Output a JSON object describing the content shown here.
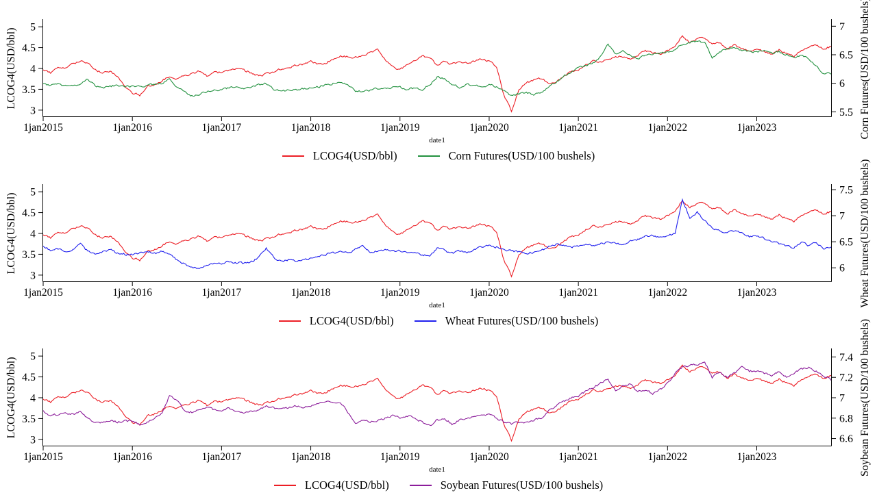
{
  "page": {
    "background": "#ffffff",
    "description": "Three stacked dual-axis Stata-style time-series line charts comparing LCOG4 with grain futures, 2015-2023"
  },
  "series_store": {
    "lcog4": [
      3.98,
      3.9,
      4.05,
      4.02,
      4.12,
      4.18,
      4.12,
      3.98,
      3.88,
      3.93,
      3.8,
      3.58,
      3.42,
      3.36,
      3.55,
      3.62,
      3.72,
      3.8,
      3.76,
      3.82,
      3.86,
      3.94,
      3.82,
      3.92,
      3.9,
      3.96,
      3.98,
      3.95,
      3.9,
      3.82,
      3.86,
      3.92,
      3.98,
      4.02,
      4.08,
      4.1,
      4.16,
      4.1,
      4.14,
      4.22,
      4.3,
      4.28,
      4.27,
      4.31,
      4.38,
      4.44,
      4.22,
      4.04,
      3.96,
      4.12,
      4.2,
      4.3,
      4.26,
      4.08,
      4.18,
      4.1,
      4.17,
      4.12,
      4.18,
      4.22,
      4.18,
      4.02,
      3.35,
      2.98,
      3.48,
      3.66,
      3.72,
      3.76,
      3.66,
      3.68,
      3.8,
      3.92,
      3.97,
      4.08,
      4.18,
      4.15,
      4.22,
      4.3,
      4.28,
      4.22,
      4.32,
      4.44,
      4.38,
      4.33,
      4.42,
      4.52,
      4.8,
      4.62,
      4.7,
      4.74,
      4.58,
      4.62,
      4.47,
      4.56,
      4.48,
      4.4,
      4.46,
      4.4,
      4.34,
      4.44,
      4.36,
      4.3,
      4.42,
      4.5,
      4.57,
      4.47,
      4.53
    ],
    "corn": [
      6.0,
      5.97,
      5.98,
      5.96,
      5.95,
      5.98,
      6.08,
      5.95,
      5.92,
      5.95,
      5.96,
      5.94,
      5.95,
      5.94,
      5.96,
      5.98,
      6.0,
      6.1,
      5.94,
      5.84,
      5.78,
      5.81,
      5.85,
      5.87,
      5.9,
      5.92,
      5.93,
      5.92,
      5.93,
      5.97,
      6.0,
      5.89,
      5.86,
      5.88,
      5.89,
      5.9,
      5.92,
      5.94,
      5.97,
      6.0,
      6.02,
      5.97,
      5.87,
      5.86,
      5.88,
      5.91,
      5.92,
      5.93,
      5.93,
      5.9,
      5.92,
      5.9,
      5.97,
      6.12,
      6.07,
      5.97,
      5.93,
      5.98,
      5.95,
      5.96,
      5.97,
      5.94,
      5.86,
      5.78,
      5.81,
      5.83,
      5.8,
      5.85,
      5.93,
      6.02,
      6.12,
      6.2,
      6.26,
      6.31,
      6.36,
      6.46,
      6.68,
      6.52,
      6.58,
      6.5,
      6.42,
      6.49,
      6.51,
      6.52,
      6.55,
      6.6,
      6.68,
      6.72,
      6.74,
      6.7,
      6.45,
      6.56,
      6.6,
      6.62,
      6.58,
      6.56,
      6.55,
      6.58,
      6.52,
      6.55,
      6.5,
      6.45,
      6.5,
      6.44,
      6.3,
      6.18,
      6.16
    ],
    "wheat": [
      6.42,
      6.34,
      6.36,
      6.3,
      6.34,
      6.45,
      6.32,
      6.28,
      6.32,
      6.35,
      6.28,
      6.26,
      6.25,
      6.28,
      6.3,
      6.27,
      6.32,
      6.28,
      6.15,
      6.08,
      6.02,
      6.0,
      6.05,
      6.08,
      6.08,
      6.12,
      6.1,
      6.08,
      6.12,
      6.2,
      6.38,
      6.2,
      6.12,
      6.15,
      6.13,
      6.15,
      6.18,
      6.23,
      6.26,
      6.28,
      6.3,
      6.28,
      6.35,
      6.43,
      6.3,
      6.33,
      6.35,
      6.32,
      6.33,
      6.3,
      6.28,
      6.25,
      6.22,
      6.38,
      6.33,
      6.28,
      6.32,
      6.3,
      6.35,
      6.4,
      6.42,
      6.4,
      6.35,
      6.32,
      6.3,
      6.28,
      6.3,
      6.33,
      6.4,
      6.45,
      6.42,
      6.4,
      6.42,
      6.45,
      6.42,
      6.46,
      6.5,
      6.48,
      6.45,
      6.52,
      6.55,
      6.6,
      6.63,
      6.58,
      6.6,
      6.66,
      7.3,
      6.96,
      7.06,
      6.9,
      6.76,
      6.72,
      6.68,
      6.72,
      6.66,
      6.6,
      6.62,
      6.56,
      6.5,
      6.46,
      6.42,
      6.38,
      6.5,
      6.42,
      6.48,
      6.38,
      6.4
    ],
    "soybean": [
      6.88,
      6.82,
      6.84,
      6.85,
      6.84,
      6.86,
      6.8,
      6.75,
      6.76,
      6.78,
      6.76,
      6.77,
      6.77,
      6.74,
      6.76,
      6.8,
      6.84,
      7.02,
      6.97,
      6.88,
      6.86,
      6.88,
      6.9,
      6.88,
      6.88,
      6.9,
      6.87,
      6.85,
      6.87,
      6.88,
      6.92,
      6.9,
      6.88,
      6.9,
      6.92,
      6.91,
      6.92,
      6.94,
      6.96,
      6.95,
      6.96,
      6.85,
      6.74,
      6.78,
      6.76,
      6.78,
      6.8,
      6.82,
      6.8,
      6.82,
      6.8,
      6.76,
      6.72,
      6.78,
      6.8,
      6.74,
      6.78,
      6.8,
      6.82,
      6.83,
      6.84,
      6.8,
      6.76,
      6.74,
      6.76,
      6.76,
      6.78,
      6.8,
      6.88,
      6.92,
      6.96,
      7.0,
      7.02,
      7.06,
      7.1,
      7.14,
      7.18,
      7.06,
      7.12,
      7.14,
      7.06,
      7.08,
      7.04,
      7.08,
      7.14,
      7.24,
      7.3,
      7.32,
      7.33,
      7.36,
      7.2,
      7.26,
      7.2,
      7.24,
      7.3,
      7.26,
      7.26,
      7.24,
      7.22,
      7.26,
      7.2,
      7.24,
      7.28,
      7.3,
      7.26,
      7.22,
      7.17
    ]
  },
  "chart_data": [
    {
      "type": "line",
      "xlabel": "date1",
      "ylabel_left": "LCOG4(USD/bbl)",
      "ylabel_right": "Corn Futures(USD/100 bushels)",
      "x_tick_labels": [
        "1jan2015",
        "1jan2016",
        "1jan2017",
        "1jan2018",
        "1jan2019",
        "1jan2020",
        "1jan2021",
        "1jan2022",
        "1jan2023"
      ],
      "x_tick_positions": [
        0,
        12,
        24,
        36,
        48,
        60,
        72,
        84,
        96
      ],
      "x_domain": [
        0,
        106
      ],
      "x_unit": "months since Jan 2015, monthly samples of daily series",
      "y_left_ticks": [
        3,
        3.5,
        4,
        4.5,
        5
      ],
      "y_left_domain": [
        2.85,
        5.15
      ],
      "y_right_ticks": [
        5.5,
        6,
        6.5,
        7
      ],
      "y_right_domain": [
        5.42,
        7.1
      ],
      "grid": false,
      "legend_position": "bottom-center",
      "legend": [
        {
          "label": "LCOG4(USD/bbl)",
          "color": "#ec1e25",
          "series": "lcog4",
          "axis": "left"
        },
        {
          "label": "Corn Futures(USD/100 bushels)",
          "color": "#22913f",
          "series": "corn",
          "axis": "right"
        }
      ]
    },
    {
      "type": "line",
      "xlabel": "date1",
      "ylabel_left": "LCOG4(USD/bbl)",
      "ylabel_right": "Wheat Futures(USD/100 bushels)",
      "x_tick_labels": [
        "1jan2015",
        "1jan2016",
        "1jan2017",
        "1jan2018",
        "1jan2019",
        "1jan2020",
        "1jan2021",
        "1jan2022",
        "1jan2023"
      ],
      "x_tick_positions": [
        0,
        12,
        24,
        36,
        48,
        60,
        72,
        84,
        96
      ],
      "x_domain": [
        0,
        106
      ],
      "x_unit": "months since Jan 2015, monthly samples of daily series",
      "y_left_ticks": [
        3,
        3.5,
        4,
        4.5,
        5
      ],
      "y_left_domain": [
        2.85,
        5.15
      ],
      "y_right_ticks": [
        6,
        6.5,
        7,
        7.5
      ],
      "y_right_domain": [
        5.74,
        7.58
      ],
      "grid": false,
      "legend_position": "bottom-center",
      "legend": [
        {
          "label": "LCOG4(USD/bbl)",
          "color": "#ec1e25",
          "series": "lcog4",
          "axis": "left"
        },
        {
          "label": "Wheat Futures(USD/100 bushels)",
          "color": "#2020ee",
          "series": "wheat",
          "axis": "right"
        }
      ]
    },
    {
      "type": "line",
      "xlabel": "date1",
      "ylabel_left": "LCOG4(USD/bbl)",
      "ylabel_right": "Soybean Futures(USD/100 bushels)",
      "x_tick_labels": [
        "1jan2015",
        "1jan2016",
        "1jan2017",
        "1jan2018",
        "1jan2019",
        "1jan2020",
        "1jan2021",
        "1jan2022",
        "1jan2023"
      ],
      "x_tick_positions": [
        0,
        12,
        24,
        36,
        48,
        60,
        72,
        84,
        96
      ],
      "x_domain": [
        0,
        106
      ],
      "x_unit": "months since Jan 2015, monthly samples of daily series",
      "y_left_ticks": [
        3,
        3.5,
        4,
        4.5,
        5
      ],
      "y_left_domain": [
        2.85,
        5.15
      ],
      "y_right_ticks": [
        6.6,
        6.8,
        7,
        7.2,
        7.4
      ],
      "y_right_domain": [
        6.53,
        7.47
      ],
      "grid": false,
      "legend_position": "bottom-center",
      "legend": [
        {
          "label": "LCOG4(USD/bbl)",
          "color": "#ec1e25",
          "series": "lcog4",
          "axis": "left"
        },
        {
          "label": "Soybean Futures(USD/100 bushels)",
          "color": "#8c1d9b",
          "series": "soybean",
          "axis": "right"
        }
      ]
    }
  ]
}
